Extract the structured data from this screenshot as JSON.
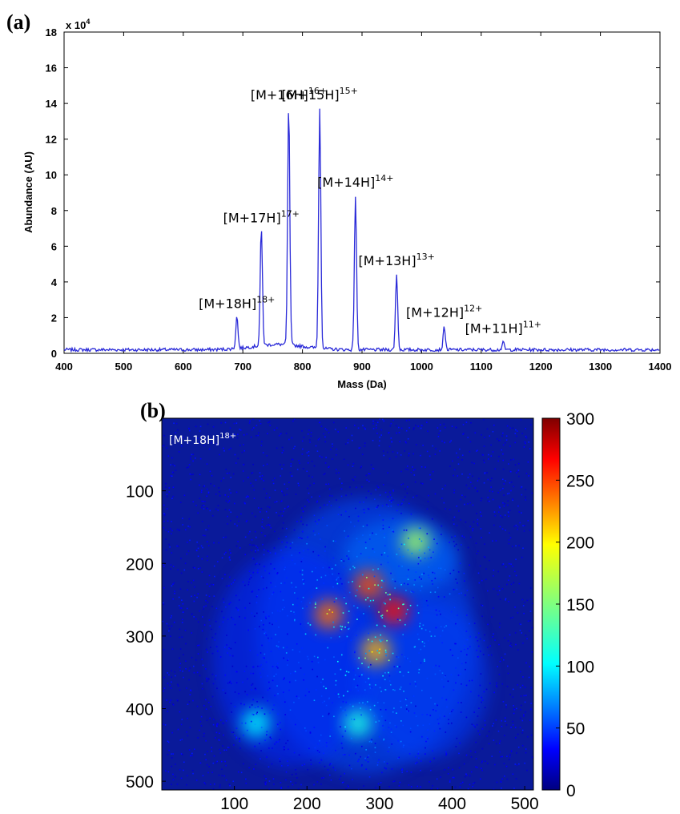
{
  "panels": {
    "a_label": "(a)",
    "b_label": "(b)"
  },
  "chart_data": [
    {
      "type": "line",
      "xlabel": "Mass (Da)",
      "ylabel": "Abundance (AU)",
      "y_multiplier": "x 10",
      "y_multiplier_exp": "4",
      "xlim": [
        400,
        1400
      ],
      "ylim": [
        0,
        18
      ],
      "xticks": [
        400,
        500,
        600,
        700,
        800,
        900,
        1000,
        1100,
        1200,
        1300,
        1400
      ],
      "yticks": [
        0,
        2,
        4,
        6,
        8,
        10,
        12,
        14,
        16,
        18
      ],
      "grid": false,
      "series_color": "#2a2ad8",
      "baseline": 0.2,
      "peaks": [
        {
          "x": 690,
          "y": 2.0,
          "label": "[M+18H]",
          "charge": "18+"
        },
        {
          "x": 731,
          "y": 6.8,
          "label": "[M+17H]",
          "charge": "17+"
        },
        {
          "x": 777,
          "y": 13.7,
          "label": "[M+16H]",
          "charge": "16+"
        },
        {
          "x": 829,
          "y": 13.7,
          "label": "[M+15H]",
          "charge": "15+"
        },
        {
          "x": 889,
          "y": 8.8,
          "label": "[M+14H]",
          "charge": "14+"
        },
        {
          "x": 958,
          "y": 4.4,
          "label": "[M+13H]",
          "charge": "13+"
        },
        {
          "x": 1038,
          "y": 1.5,
          "label": "[M+12H]",
          "charge": "12+"
        },
        {
          "x": 1137,
          "y": 0.6,
          "label": "[M+11H]",
          "charge": "11+"
        }
      ]
    },
    {
      "type": "heatmap",
      "annotation": "[M+18H]",
      "annotation_charge": "18+",
      "xlim": [
        0,
        512
      ],
      "ylim": [
        0,
        512
      ],
      "xticks": [
        100,
        200,
        300,
        400,
        500
      ],
      "yticks": [
        100,
        200,
        300,
        400,
        500
      ],
      "colorbar": {
        "min": 0,
        "max": 300,
        "ticks": [
          0,
          50,
          100,
          150,
          200,
          250,
          300
        ],
        "colormap": "jet"
      },
      "background_value": 20,
      "hotspots": [
        {
          "x": 320,
          "y": 265,
          "value": 260
        },
        {
          "x": 285,
          "y": 230,
          "value": 240
        },
        {
          "x": 230,
          "y": 270,
          "value": 230
        },
        {
          "x": 295,
          "y": 320,
          "value": 210
        },
        {
          "x": 350,
          "y": 170,
          "value": 160
        },
        {
          "x": 130,
          "y": 420,
          "value": 110
        },
        {
          "x": 270,
          "y": 420,
          "value": 120
        }
      ]
    }
  ]
}
